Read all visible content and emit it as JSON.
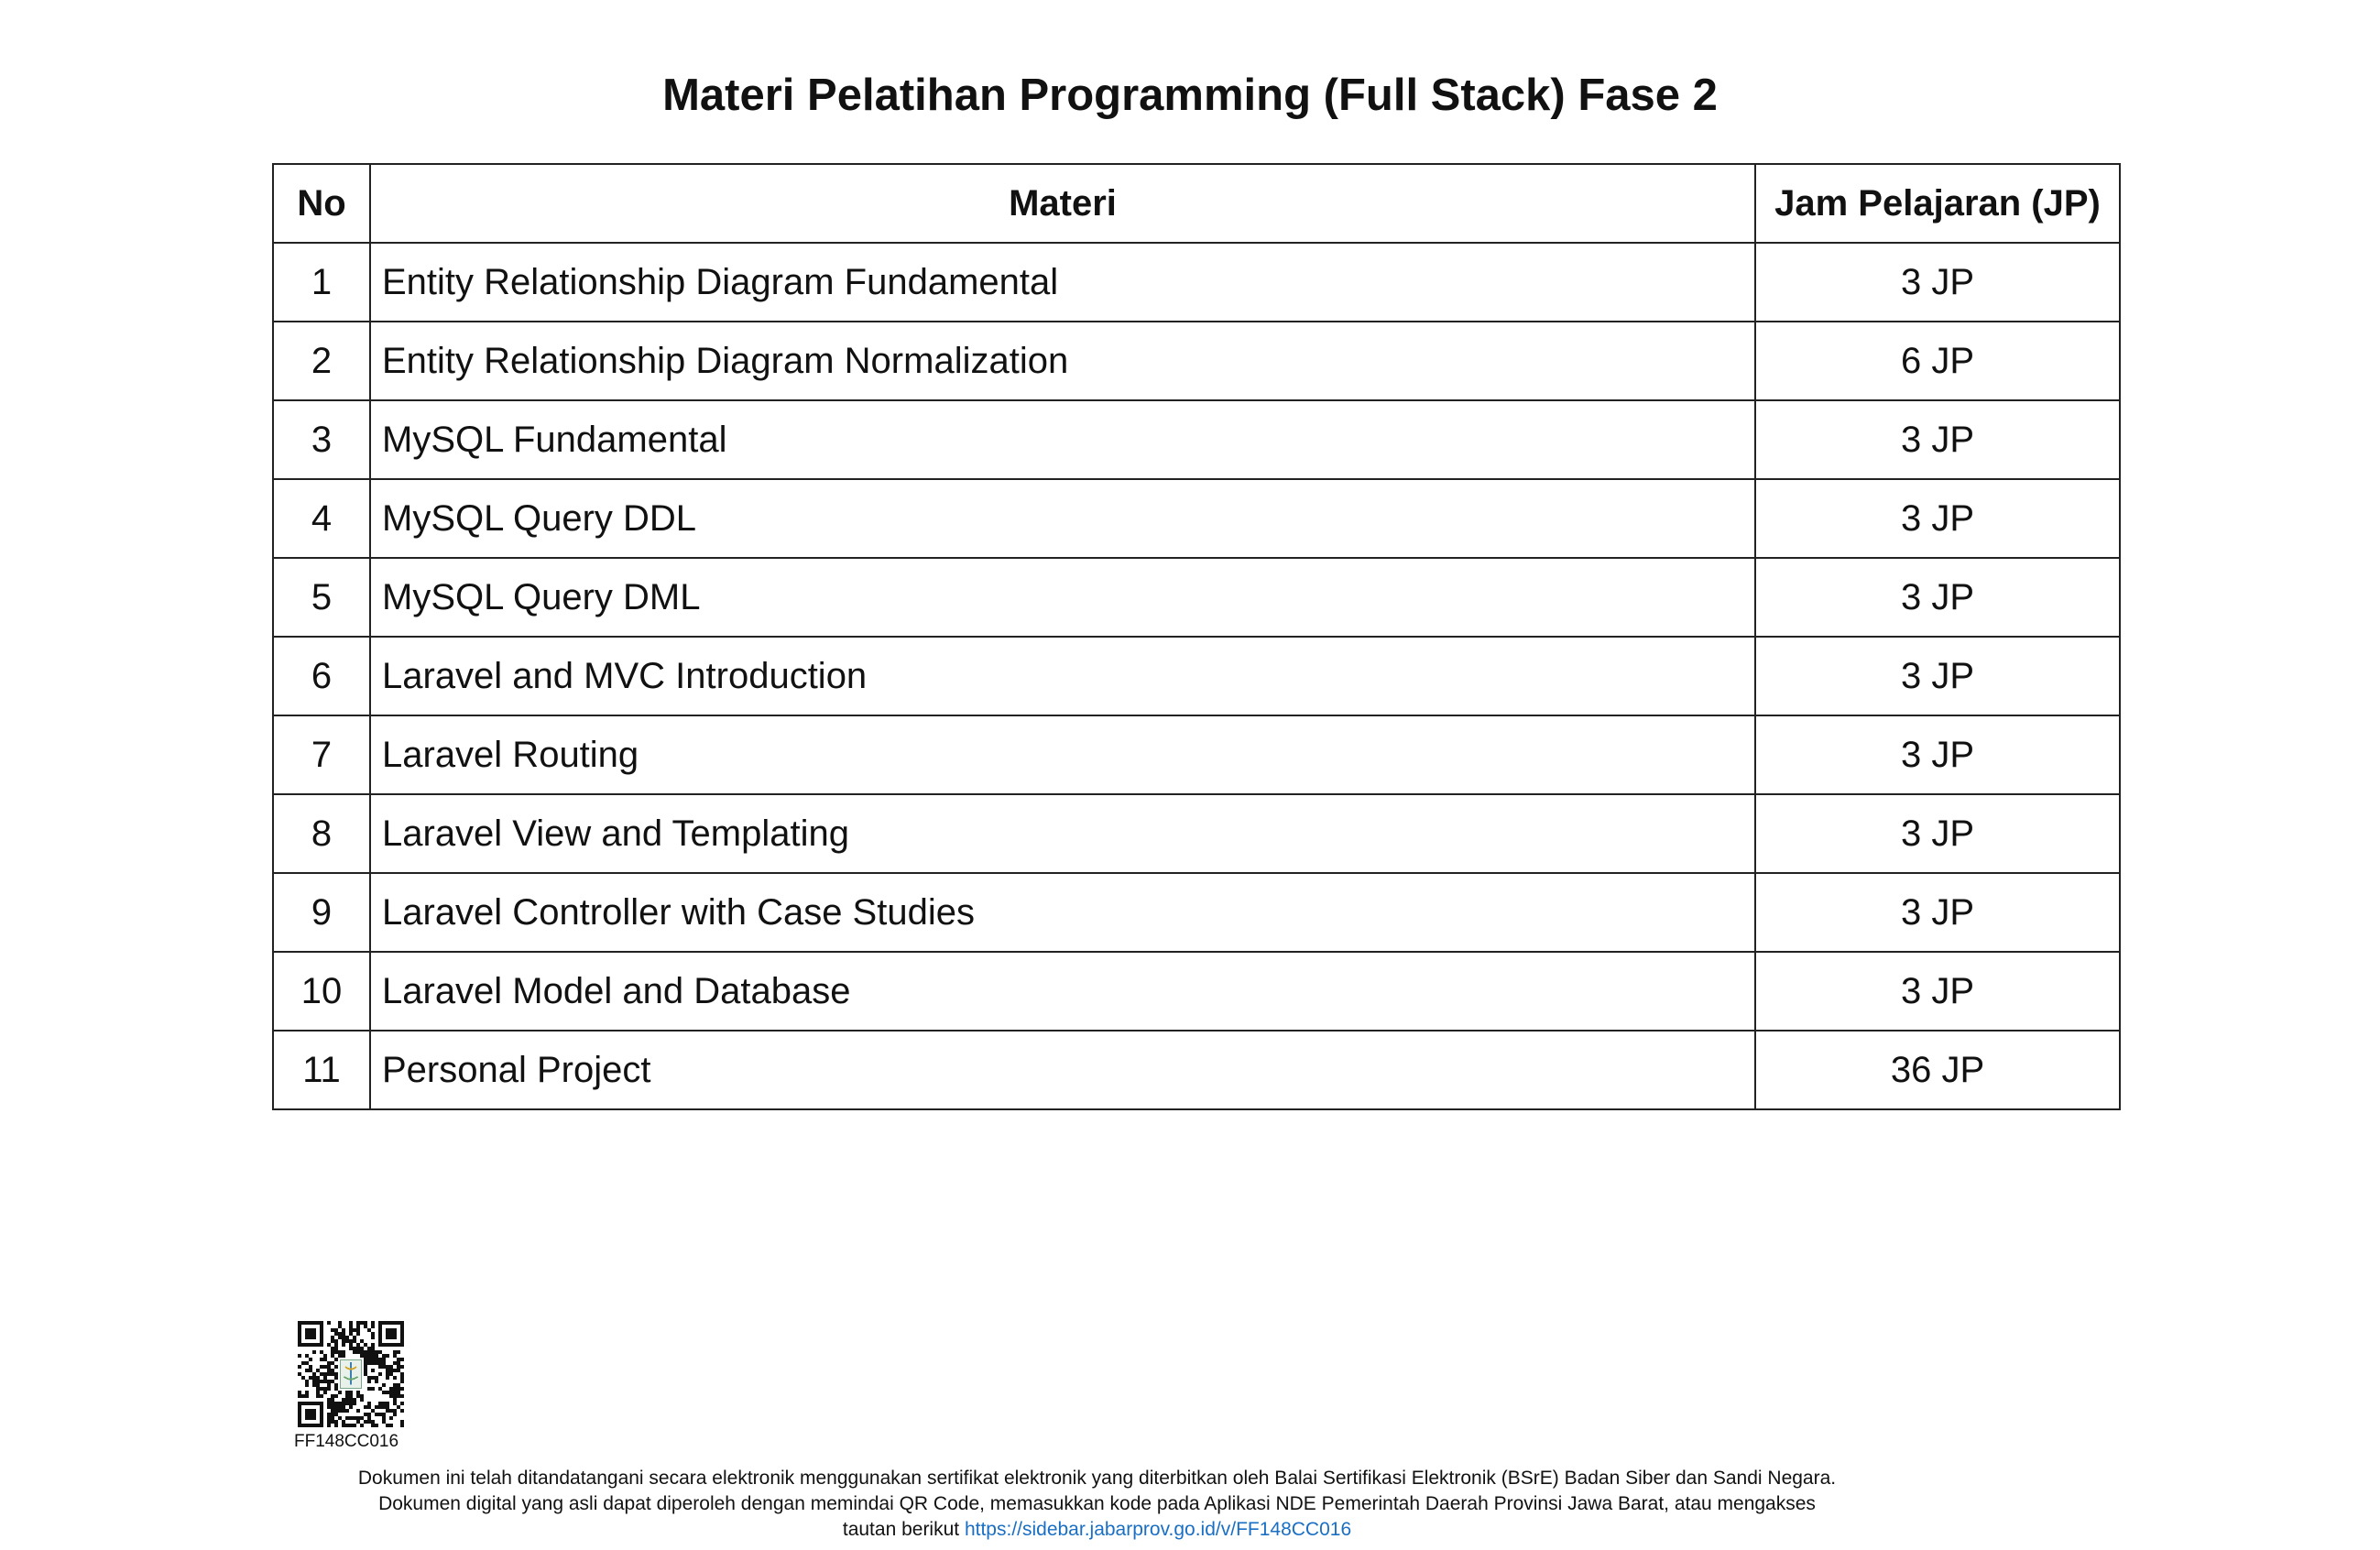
{
  "title": "Materi Pelatihan Programming (Full Stack) Fase 2",
  "table": {
    "headers": {
      "no": "No",
      "materi": "Materi",
      "jp": "Jam Pelajaran (JP)"
    },
    "rows": [
      {
        "no": "1",
        "materi": "Entity Relationship Diagram Fundamental",
        "jp": "3 JP"
      },
      {
        "no": "2",
        "materi": "Entity Relationship Diagram Normalization",
        "jp": "6 JP"
      },
      {
        "no": "3",
        "materi": "MySQL Fundamental",
        "jp": "3 JP"
      },
      {
        "no": "4",
        "materi": "MySQL Query DDL",
        "jp": "3 JP"
      },
      {
        "no": "5",
        "materi": "MySQL Query DML",
        "jp": "3 JP"
      },
      {
        "no": "6",
        "materi": "Laravel and MVC Introduction",
        "jp": "3 JP"
      },
      {
        "no": "7",
        "materi": "Laravel Routing",
        "jp": "3 JP"
      },
      {
        "no": "8",
        "materi": "Laravel View and Templating",
        "jp": "3 JP"
      },
      {
        "no": "9",
        "materi": "Laravel Controller with Case Studies",
        "jp": "3 JP"
      },
      {
        "no": "10",
        "materi": "Laravel Model and Database",
        "jp": "3 JP"
      },
      {
        "no": "11",
        "materi": "Personal Project",
        "jp": "36 JP"
      }
    ]
  },
  "footer": {
    "doc_code": "FF148CC016",
    "line1": "Dokumen ini telah ditandatangani secara elektronik menggunakan sertifikat elektronik yang diterbitkan oleh Balai Sertifikasi Elektronik (BSrE) Badan Siber dan Sandi Negara.",
    "line2": "Dokumen digital yang asli dapat diperoleh dengan memindai QR Code, memasukkan kode pada Aplikasi NDE Pemerintah Daerah Provinsi Jawa Barat, atau mengakses",
    "line3_prefix": "tautan berikut ",
    "link": "https://sidebar.jabarprov.go.id/v/FF148CC016",
    "link_color": "#1a6fc4"
  }
}
